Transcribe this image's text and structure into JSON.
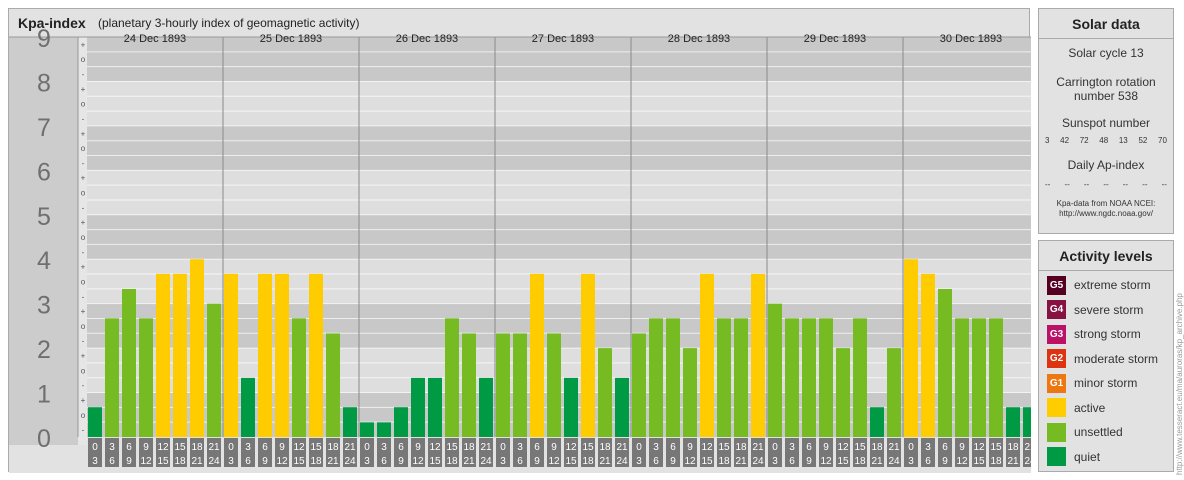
{
  "header": {
    "title": "Kpa-index",
    "subtitle": "(planetary 3-hourly index of geomagnetic activity)"
  },
  "chart_data": {
    "type": "bar",
    "title": "Kpa-index",
    "subtitle": "(planetary 3-hourly index of geomagnetic activity)",
    "ylim": [
      0,
      9
    ],
    "y_ticks": [
      "0",
      "1",
      "2",
      "3",
      "4",
      "5",
      "6",
      "7",
      "8",
      "9"
    ],
    "y_minor_ticks": [
      "-",
      "o",
      "+"
    ],
    "days": [
      {
        "date": "24 Dec 1893",
        "values": [
          0.67,
          2.67,
          3.33,
          2.67,
          3.67,
          3.67,
          4.0,
          3.0
        ]
      },
      {
        "date": "25 Dec 1893",
        "values": [
          3.67,
          1.33,
          3.67,
          3.67,
          2.67,
          3.67,
          2.33,
          0.67
        ]
      },
      {
        "date": "26 Dec 1893",
        "values": [
          0.33,
          0.33,
          0.67,
          1.33,
          1.33,
          2.67,
          2.33,
          1.33
        ]
      },
      {
        "date": "27 Dec 1893",
        "values": [
          2.33,
          2.33,
          3.67,
          2.33,
          1.33,
          3.67,
          2.0,
          1.33
        ]
      },
      {
        "date": "28 Dec 1893",
        "values": [
          2.33,
          2.67,
          2.67,
          2.0,
          3.67,
          2.67,
          2.67,
          3.67
        ]
      },
      {
        "date": "29 Dec 1893",
        "values": [
          3.0,
          2.67,
          2.67,
          2.67,
          2.0,
          2.67,
          0.67,
          2.0
        ]
      },
      {
        "date": "30 Dec 1893",
        "values": [
          4.0,
          3.67,
          3.33,
          2.67,
          2.67,
          2.67,
          0.67,
          0.67
        ]
      }
    ],
    "intervals": [
      [
        "0",
        "3"
      ],
      [
        "3",
        "6"
      ],
      [
        "6",
        "9"
      ],
      [
        "9",
        "12"
      ],
      [
        "12",
        "15"
      ],
      [
        "15",
        "18"
      ],
      [
        "18",
        "21"
      ],
      [
        "21",
        "24"
      ]
    ],
    "level_colors": {
      "quiet": "#009944",
      "unsettled": "#77bb22",
      "active": "#ffcc00"
    },
    "grid": true
  },
  "solar": {
    "heading": "Solar data",
    "cycle": "Solar cycle 13",
    "carrington_line1": "Carrington rotation",
    "carrington_line2": "number 538",
    "sunspot_label": "Sunspot number",
    "sunspot_values": [
      "3",
      "42",
      "72",
      "48",
      "13",
      "52",
      "70"
    ],
    "ap_label": "Daily Ap-index",
    "ap_values": [
      "--",
      "--",
      "--",
      "--",
      "--",
      "--",
      "--"
    ],
    "credit_line1": "Kpa-data from NOAA NCEI:",
    "credit_line2": "http://www.ngdc.noaa.gov/"
  },
  "activity": {
    "heading": "Activity levels",
    "levels": [
      {
        "code": "G5",
        "label": "extreme storm",
        "color": "#550022"
      },
      {
        "code": "G4",
        "label": "severe storm",
        "color": "#881144"
      },
      {
        "code": "G3",
        "label": "strong storm",
        "color": "#bb1166"
      },
      {
        "code": "G2",
        "label": "moderate storm",
        "color": "#dd3311"
      },
      {
        "code": "G1",
        "label": "minor storm",
        "color": "#ee7711"
      },
      {
        "code": "",
        "label": "active",
        "color": "#ffcc00"
      },
      {
        "code": "",
        "label": "unsettled",
        "color": "#77bb22"
      },
      {
        "code": "",
        "label": "quiet",
        "color": "#009944"
      }
    ]
  },
  "watermark": "http://www.tesseract.eu/ma/auroras/kp_archive.php"
}
